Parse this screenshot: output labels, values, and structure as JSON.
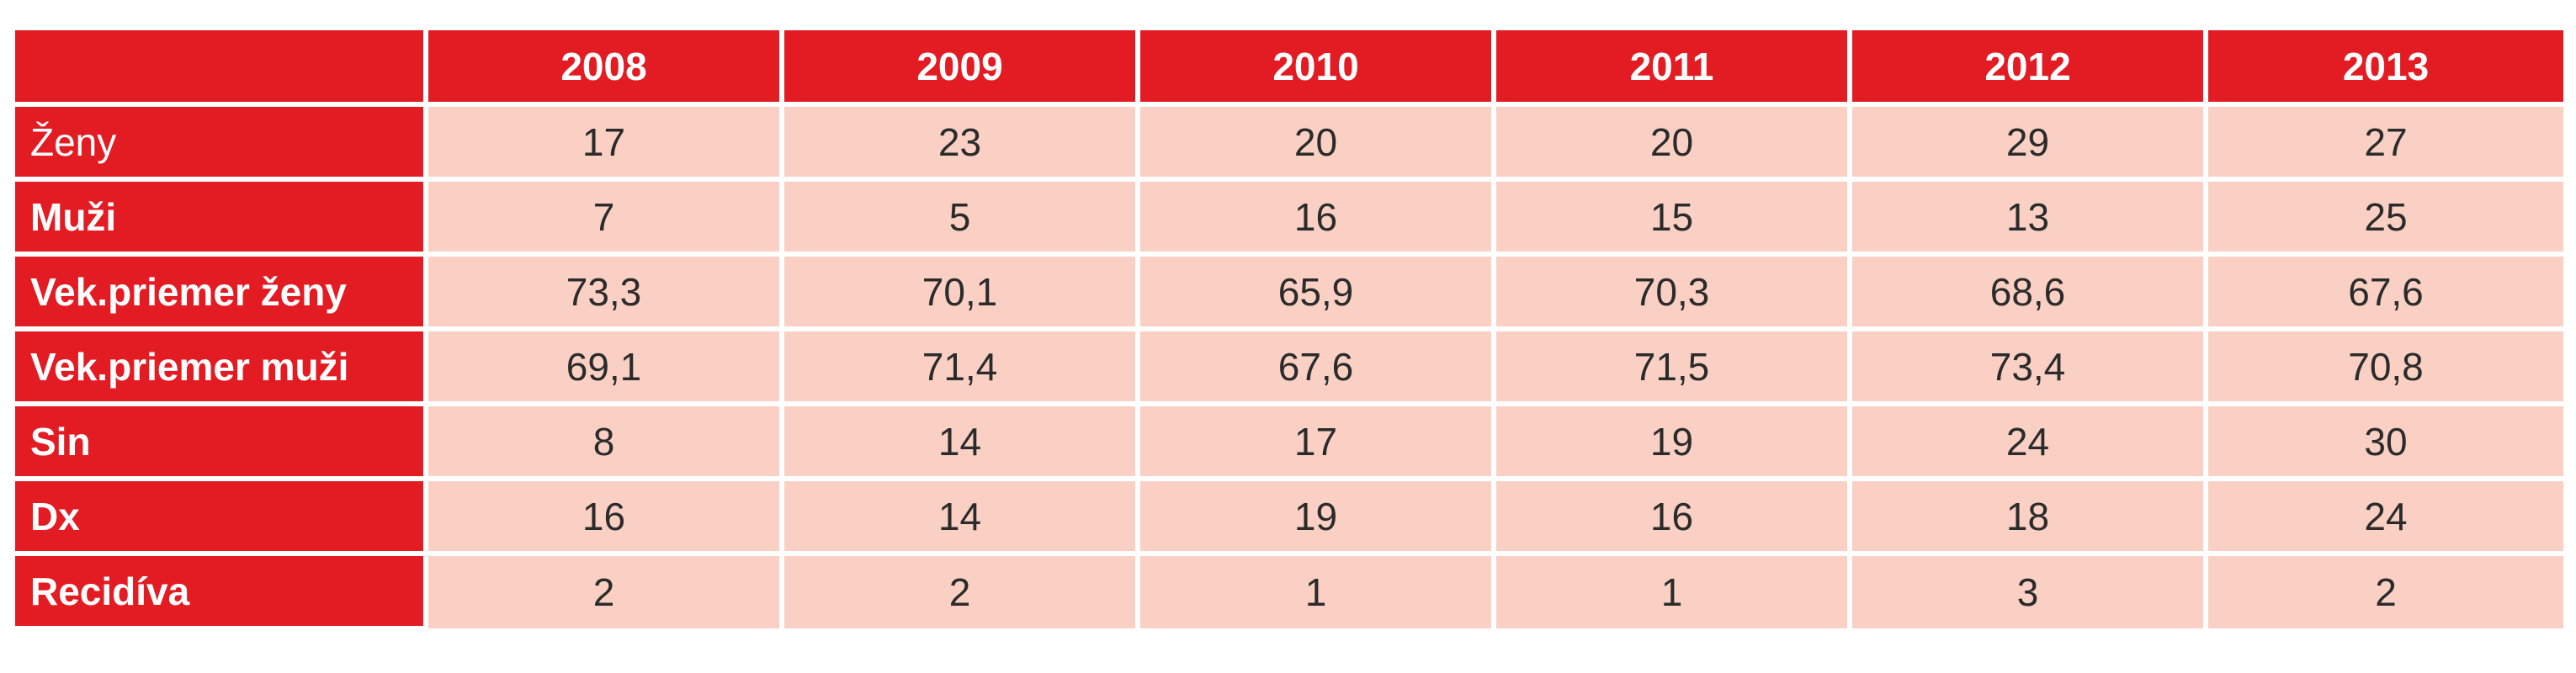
{
  "table": {
    "columns": [
      "2008",
      "2009",
      "2010",
      "2011",
      "2012",
      "2013"
    ],
    "rows": [
      {
        "label": "Ženy",
        "values": [
          "17",
          "23",
          "20",
          "20",
          "29",
          "27"
        ]
      },
      {
        "label": "Muži",
        "values": [
          "7",
          "5",
          "16",
          "15",
          "13",
          "25"
        ]
      },
      {
        "label": "Vek.priemer ženy",
        "values": [
          "73,3",
          "70,1",
          "65,9",
          "70,3",
          "68,6",
          "67,6"
        ]
      },
      {
        "label": "Vek.priemer muži",
        "values": [
          "69,1",
          "71,4",
          "67,6",
          "71,5",
          "73,4",
          "70,8"
        ]
      },
      {
        "label": "Sin",
        "values": [
          "8",
          "14",
          "17",
          "19",
          "24",
          "30"
        ]
      },
      {
        "label": "Dx",
        "values": [
          "16",
          "14",
          "19",
          "16",
          "18",
          "24"
        ]
      },
      {
        "label": "Recidíva",
        "values": [
          "2",
          "2",
          "1",
          "1",
          "3",
          "2"
        ]
      }
    ]
  },
  "colors": {
    "header_red": "#e31b23",
    "cell_pink": "#f9d0c3"
  }
}
